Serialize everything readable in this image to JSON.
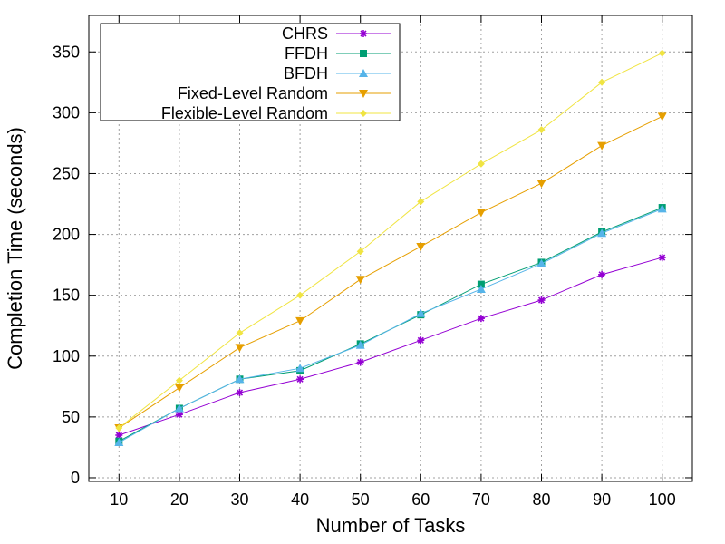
{
  "chart_data": {
    "type": "line",
    "title": "",
    "xlabel": "Number of Tasks",
    "ylabel": "Completion Time (seconds)",
    "x": [
      10,
      20,
      30,
      40,
      50,
      60,
      70,
      80,
      90,
      100
    ],
    "xticks": [
      "10",
      "20",
      "30",
      "40",
      "50",
      "60",
      "70",
      "80",
      "90",
      "100"
    ],
    "yticks": [
      "0",
      "50",
      "100",
      "150",
      "200",
      "250",
      "300",
      "350"
    ],
    "xlim": [
      5,
      105
    ],
    "ylim": [
      -3,
      380
    ],
    "grid": true,
    "legend_position": "top-left",
    "series": [
      {
        "name": "CHRS",
        "color": "#9400d3",
        "marker": "star",
        "values": [
          35,
          52,
          70,
          81,
          95,
          113,
          131,
          146,
          167,
          181
        ]
      },
      {
        "name": "FFDH",
        "color": "#009e73",
        "marker": "square",
        "values": [
          30,
          57,
          81,
          88,
          110,
          134,
          159,
          177,
          202,
          222
        ]
      },
      {
        "name": "BFDH",
        "color": "#56b4e9",
        "marker": "triangle-up",
        "values": [
          29,
          57,
          81,
          90,
          109,
          135,
          155,
          176,
          201,
          221
        ]
      },
      {
        "name": "Fixed-Level Random",
        "color": "#e69f00",
        "marker": "triangle-down",
        "values": [
          41,
          74,
          107,
          129,
          163,
          190,
          218,
          242,
          273,
          297
        ]
      },
      {
        "name": "Flexible-Level Random",
        "color": "#f0e442",
        "marker": "diamond",
        "values": [
          41,
          80,
          119,
          150,
          186,
          227,
          258,
          286,
          325,
          349
        ]
      }
    ]
  }
}
